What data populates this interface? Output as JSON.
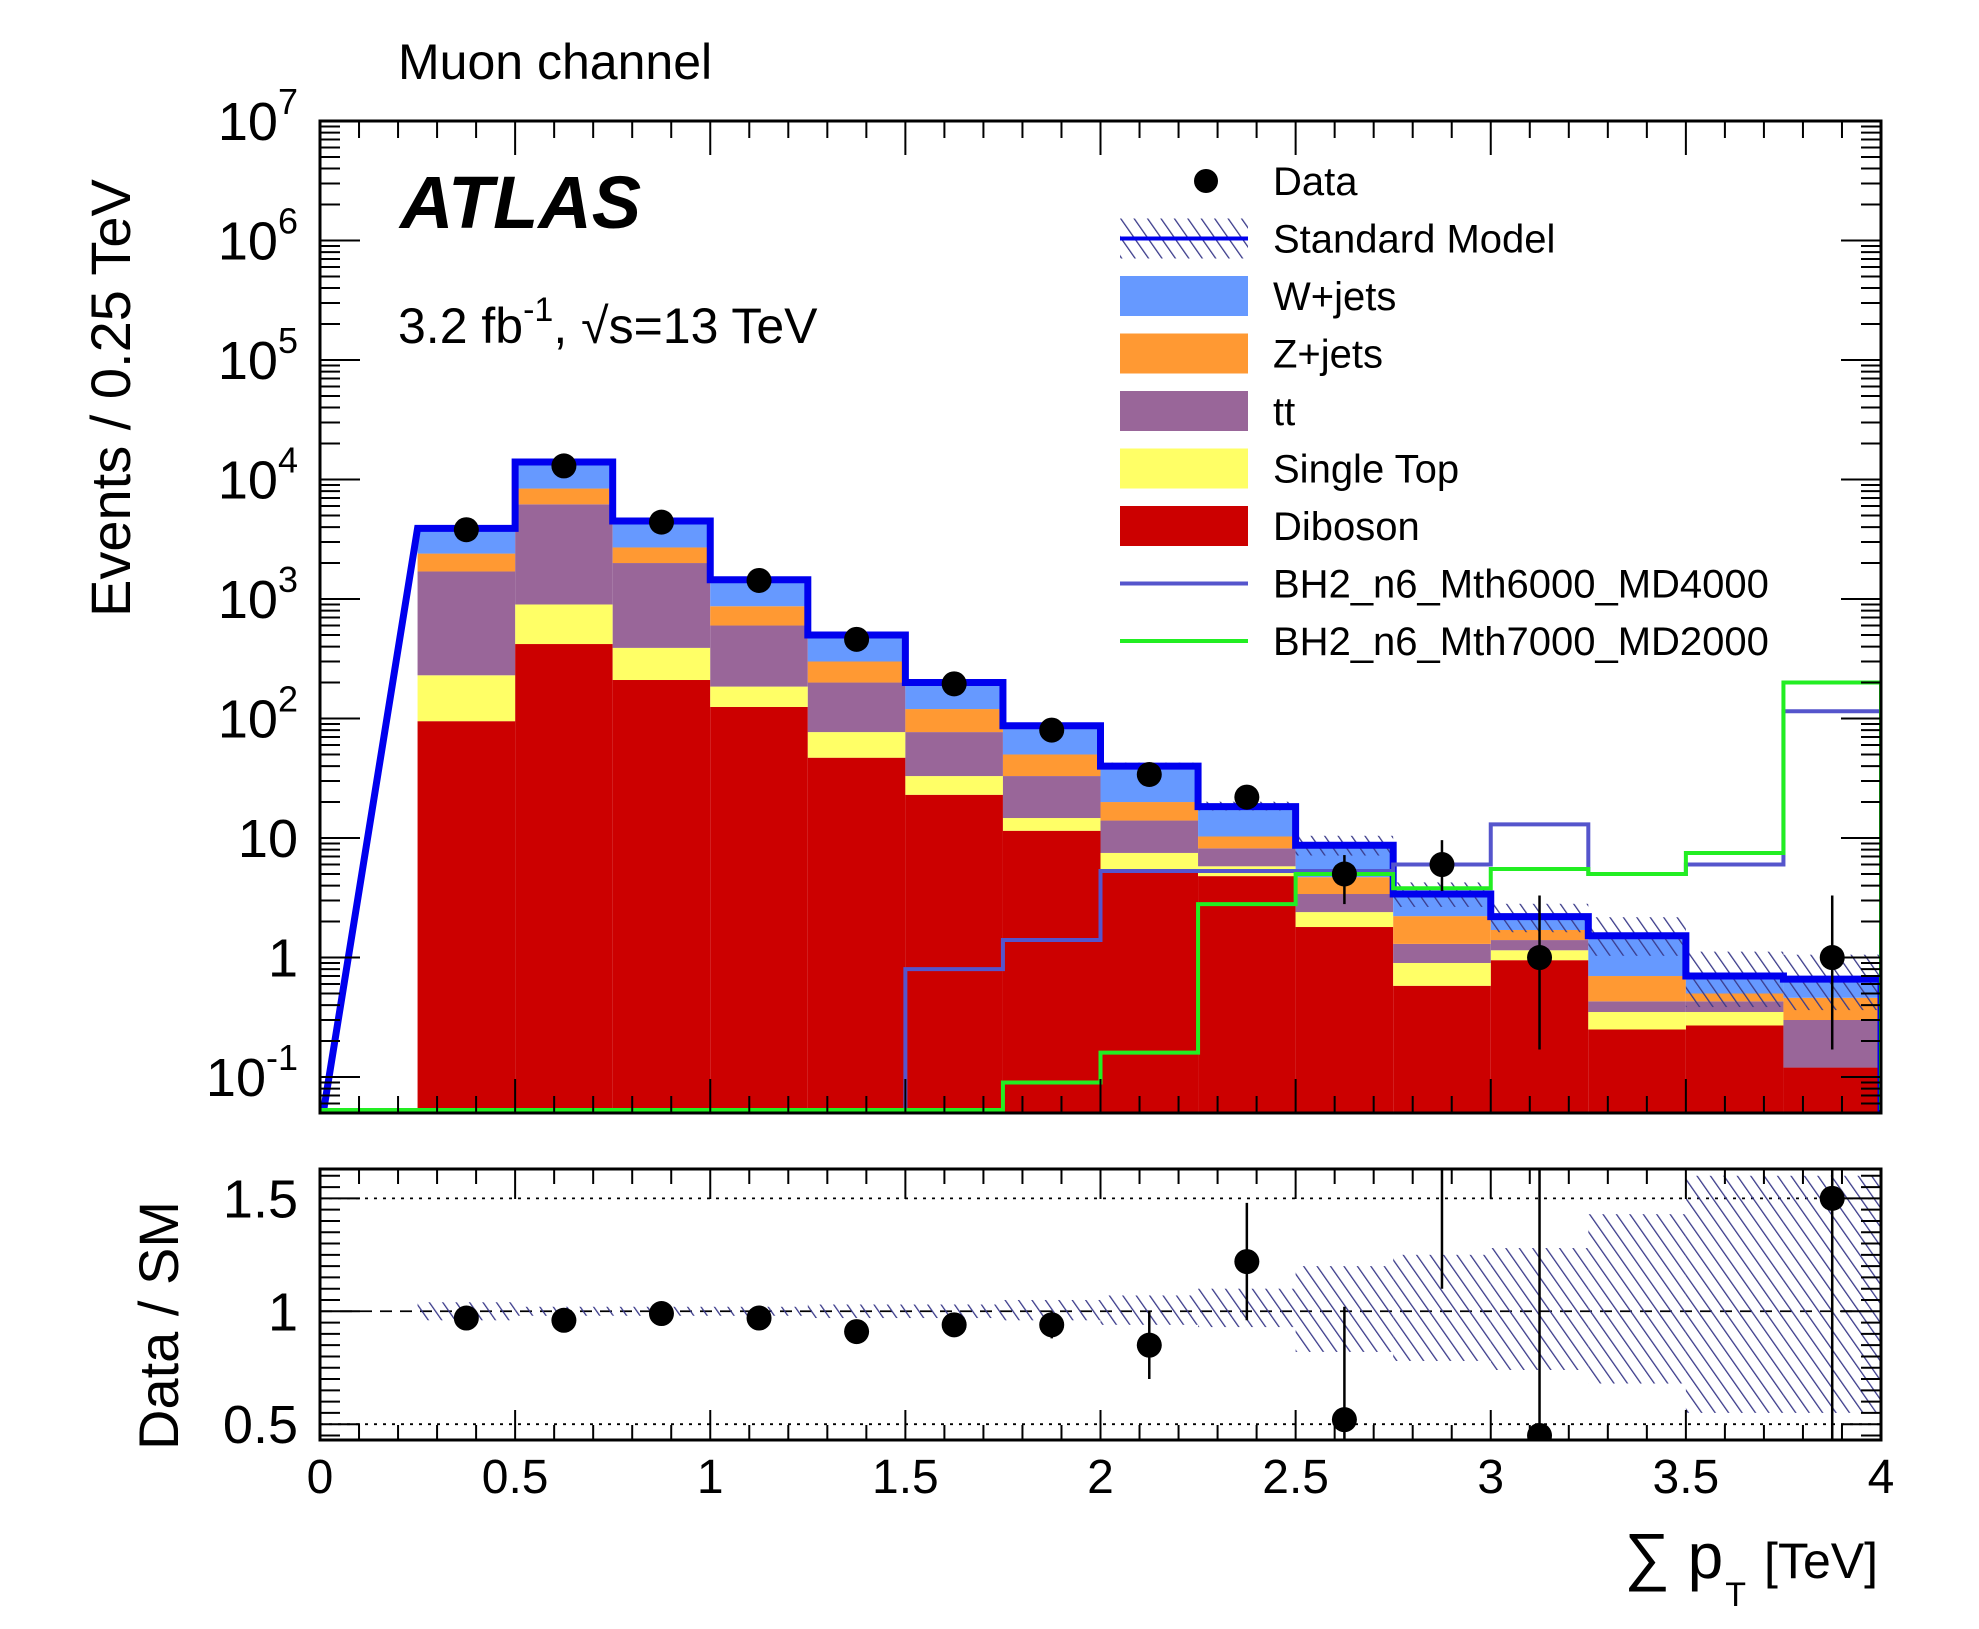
{
  "chart_data": [
    {
      "type": "stacked-histogram",
      "scale": "log",
      "title": "Muon channel",
      "experiment": "ATLAS",
      "lumi_label": {
        "lumi": "3.2 fb",
        "lumi_exp": "-1",
        "energy": ", √s=13 TeV"
      },
      "ylabel": "Events / 0.25 TeV",
      "xlim": [
        0,
        4
      ],
      "ylim": [
        0.05,
        10000000
      ],
      "yticks": [
        {
          "value": 10000000,
          "base": "10",
          "exp": "7"
        },
        {
          "value": 1000000,
          "base": "10",
          "exp": "6"
        },
        {
          "value": 100000,
          "base": "10",
          "exp": "5"
        },
        {
          "value": 10000,
          "base": "10",
          "exp": "4"
        },
        {
          "value": 1000,
          "base": "10",
          "exp": "3"
        },
        {
          "value": 100,
          "base": "10",
          "exp": "2"
        },
        {
          "value": 10,
          "base": "10",
          "exp": ""
        },
        {
          "value": 1,
          "base": "1",
          "exp": ""
        },
        {
          "value": 0.1,
          "base": "10",
          "exp": "-1"
        }
      ],
      "bin_edges": [
        0.25,
        0.5,
        0.75,
        1.0,
        1.25,
        1.5,
        1.75,
        2.0,
        2.25,
        2.5,
        2.75,
        3.0,
        3.25,
        3.5,
        3.75,
        4.0
      ],
      "stack": [
        {
          "name": "Diboson",
          "color": "#cc0000",
          "values": [
            95,
            420,
            210,
            125,
            47,
            23,
            11.5,
            5.3,
            4.8,
            1.8,
            0.58,
            0.95,
            0.25,
            0.27,
            0.12
          ]
        },
        {
          "name": "Single Top",
          "color": "#ffff66",
          "values": [
            135,
            480,
            180,
            60,
            30,
            10,
            3.2,
            2.2,
            1.0,
            0.6,
            0.32,
            0.2,
            0.1,
            0.08,
            0.0
          ]
        },
        {
          "name": "tt",
          "color": "#996699",
          "values": [
            1470,
            5300,
            1610,
            415,
            123,
            44,
            18.3,
            6.5,
            2.4,
            1.0,
            0.4,
            0.25,
            0.08,
            0.08,
            0.18
          ]
        },
        {
          "name": "Z+jets",
          "color": "#ff9933",
          "values": [
            700,
            2200,
            700,
            270,
            100,
            43,
            17,
            6.0,
            2.1,
            1.3,
            0.92,
            0.3,
            0.27,
            0.07,
            0.16
          ]
        },
        {
          "name": "W+jets",
          "color": "#6699ff",
          "values": [
            1500,
            5600,
            1800,
            580,
            200,
            80,
            37,
            20,
            8.0,
            4.0,
            1.2,
            0.5,
            0.82,
            0.2,
            0.2
          ]
        }
      ],
      "sm_total": [
        3900,
        14000,
        4500,
        1450,
        500,
        200,
        87,
        40,
        18.3,
        8.7,
        3.4,
        2.2,
        1.52,
        0.7,
        0.66
      ],
      "data": {
        "name": "Data",
        "x": [
          0.375,
          0.625,
          0.875,
          1.125,
          1.375,
          1.625,
          1.875,
          2.125,
          2.375,
          2.625,
          2.875,
          3.125,
          3.875
        ],
        "y": [
          3800,
          13000,
          4400,
          1430,
          460,
          195,
          80,
          34,
          22,
          5,
          6,
          1,
          1
        ],
        "err_low": [
          62,
          114,
          66,
          38,
          21,
          14,
          9,
          5.8,
          4.7,
          2.2,
          2.4,
          0.83,
          0.83
        ],
        "err_high": [
          62,
          114,
          66,
          38,
          21,
          14,
          9,
          5.8,
          4.7,
          2.2,
          3.6,
          2.3,
          2.3
        ]
      },
      "signals": [
        {
          "name": "BH2_n6_Mth6000_MD4000",
          "color": "#5555cc",
          "values": [
            0,
            0,
            0,
            0,
            0,
            0.8,
            1.4,
            5.3,
            5.3,
            5.3,
            6,
            13,
            5,
            6,
            115
          ]
        },
        {
          "name": "BH2_n6_Mth7000_MD2000",
          "color": "#22ee22",
          "values": [
            0,
            0,
            0,
            0,
            0,
            0,
            0.09,
            0.16,
            2.8,
            5.0,
            3.8,
            5.5,
            5.0,
            7.5,
            200
          ]
        }
      ],
      "legend": {
        "placement": "top-right",
        "entries": [
          {
            "label": "Data",
            "style": "marker"
          },
          {
            "label": "Standard Model",
            "style": "hatch"
          },
          {
            "label": "W+jets",
            "style": "fill",
            "color": "#6699ff"
          },
          {
            "label": "Z+jets",
            "style": "fill",
            "color": "#ff9933"
          },
          {
            "label": "tt",
            "style": "fill",
            "color": "#996699"
          },
          {
            "label": "Single Top",
            "style": "fill",
            "color": "#ffff66"
          },
          {
            "label": "Diboson",
            "style": "fill",
            "color": "#cc0000"
          },
          {
            "label": "BH2_n6_Mth6000_MD4000",
            "style": "line",
            "color": "#5555cc"
          },
          {
            "label": "BH2_n6_Mth7000_MD2000",
            "style": "line",
            "color": "#22ee22"
          }
        ]
      }
    },
    {
      "type": "ratio",
      "ylabel": "Data / SM",
      "xlabel": "∑ p",
      "xlabel_sub": "T",
      "xlabel_unit": "[TeV]",
      "xlim": [
        0,
        4
      ],
      "ylim": [
        0.43,
        1.63
      ],
      "yticks": [
        {
          "value": 0.5,
          "label": "0.5"
        },
        {
          "value": 1,
          "label": "1"
        },
        {
          "value": 1.5,
          "label": "1.5"
        }
      ],
      "xticks": [
        {
          "value": 0,
          "label": "0"
        },
        {
          "value": 0.5,
          "label": "0.5"
        },
        {
          "value": 1,
          "label": "1"
        },
        {
          "value": 1.5,
          "label": "1.5"
        },
        {
          "value": 2,
          "label": "2"
        },
        {
          "value": 2.5,
          "label": "2.5"
        },
        {
          "value": 3,
          "label": "3"
        },
        {
          "value": 3.5,
          "label": "3.5"
        },
        {
          "value": 4,
          "label": "4"
        }
      ],
      "uncertainty_band": {
        "low": [
          0.96,
          0.98,
          0.98,
          0.98,
          0.97,
          0.97,
          0.96,
          0.94,
          0.93,
          0.82,
          0.78,
          0.74,
          0.68,
          0.55,
          0.55
        ],
        "high": [
          1.04,
          1.02,
          1.02,
          1.02,
          1.03,
          1.03,
          1.05,
          1.07,
          1.1,
          1.2,
          1.25,
          1.28,
          1.43,
          1.6,
          1.6
        ]
      },
      "points": {
        "x": [
          0.375,
          0.625,
          0.875,
          1.125,
          1.375,
          1.625,
          1.875,
          2.125,
          2.375,
          2.625,
          2.875,
          3.125,
          3.875
        ],
        "y": [
          0.97,
          0.96,
          0.99,
          0.97,
          0.91,
          0.94,
          0.94,
          0.85,
          1.22,
          0.52,
          1.8,
          0.45,
          1.5
        ],
        "err_low": [
          0.02,
          0.01,
          0.02,
          0.03,
          0.04,
          0.05,
          0.06,
          0.15,
          0.26,
          0.5,
          0.7,
          0.45,
          1.3
        ],
        "err_high": [
          0.02,
          0.01,
          0.02,
          0.03,
          0.04,
          0.05,
          0.06,
          0.15,
          0.26,
          0.5,
          1.0,
          1.2,
          1.3
        ]
      }
    }
  ]
}
